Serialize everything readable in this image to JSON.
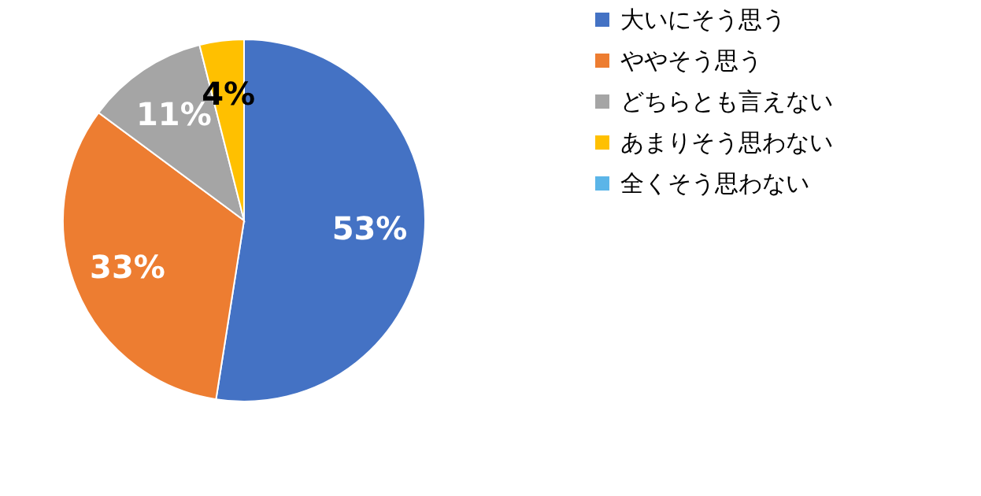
{
  "chart_data": {
    "type": "pie",
    "categories": [
      "大いにそう思う",
      "ややそう思う",
      "どちらとも言えない",
      "あまりそう思わない",
      "全くそう思わない"
    ],
    "values": [
      53,
      33,
      11,
      4,
      0
    ],
    "colors": [
      "#4472c4",
      "#ed7d31",
      "#a5a5a5",
      "#ffc000",
      "#5bb5e8"
    ],
    "value_labels": [
      "53%",
      "33%",
      "11%",
      "4%",
      null
    ],
    "legend": "right"
  }
}
